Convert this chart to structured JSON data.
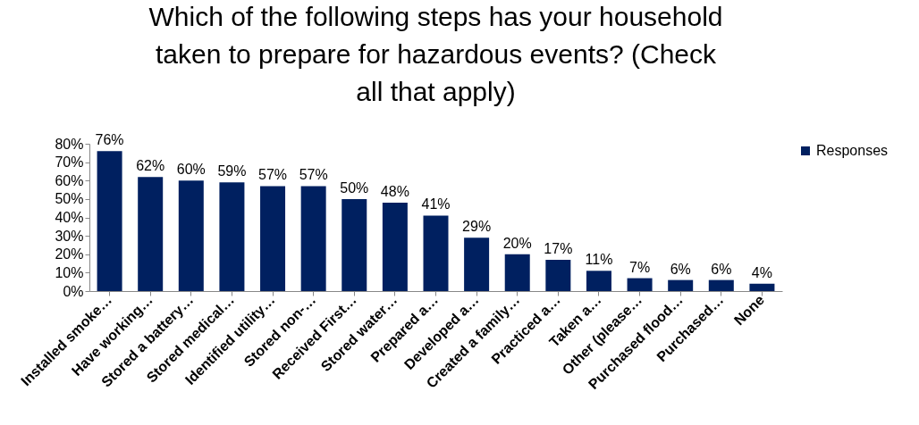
{
  "chart_data": {
    "type": "bar",
    "title": "Which of the following steps has your household taken to prepare for hazardous events? (Check all that apply)",
    "categories": [
      "Installed smoke…",
      "Have working…",
      "Stored a battery…",
      "Stored medical…",
      "Identified utility…",
      "Stored non-…",
      "Received First…",
      "Stored water…",
      "Prepared a…",
      "Developed a…",
      "Created a family…",
      "Practiced a…",
      "Taken a…",
      "Other (please…",
      "Purchased flood…",
      "Purchased…",
      "None"
    ],
    "series": [
      {
        "name": "Responses",
        "color": "#002060",
        "values": [
          76,
          62,
          60,
          59,
          57,
          57,
          50,
          48,
          41,
          29,
          20,
          17,
          11,
          7,
          6,
          6,
          4
        ],
        "value_labels": [
          "76%",
          "62%",
          "60%",
          "59%",
          "57%",
          "57%",
          "50%",
          "48%",
          "41%",
          "29%",
          "20%",
          "17%",
          "11%",
          "7%",
          "6%",
          "6%",
          "4%"
        ]
      }
    ],
    "ylim": [
      0,
      80
    ],
    "yticks": [
      {
        "value": 0,
        "label": "0%"
      },
      {
        "value": 10,
        "label": "10%"
      },
      {
        "value": 20,
        "label": "20%"
      },
      {
        "value": 30,
        "label": "30%"
      },
      {
        "value": 40,
        "label": "40%"
      },
      {
        "value": 50,
        "label": "50%"
      },
      {
        "value": 60,
        "label": "60%"
      },
      {
        "value": 70,
        "label": "70%"
      },
      {
        "value": 80,
        "label": "80%"
      }
    ],
    "grid": false,
    "legend": "right"
  }
}
